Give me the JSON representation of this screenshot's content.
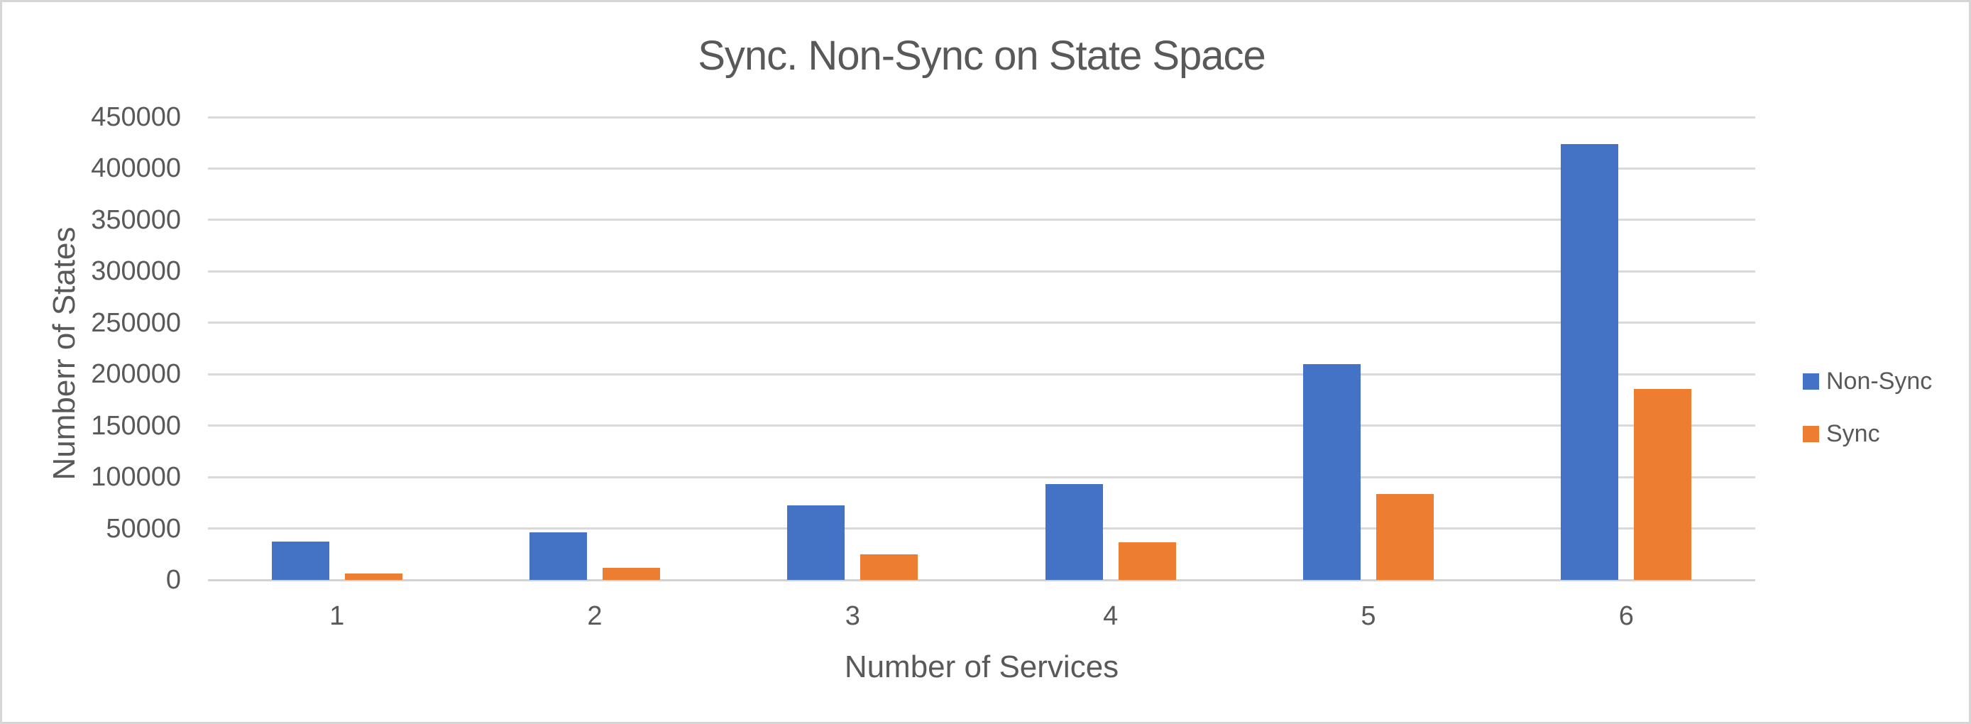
{
  "chart_data": {
    "type": "bar",
    "title": "Sync. Non-Sync on State Space",
    "xlabel": "Number of Services",
    "ylabel": "Numberr of States",
    "categories": [
      "1",
      "2",
      "3",
      "4",
      "5",
      "6"
    ],
    "series": [
      {
        "name": "Non-Sync",
        "color": "#4472C4",
        "values": [
          37000,
          46000,
          72500,
          93000,
          210000,
          424000
        ]
      },
      {
        "name": "Sync",
        "color": "#ED7D31",
        "values": [
          6000,
          11500,
          25000,
          36500,
          83500,
          186000
        ]
      }
    ],
    "ylim": [
      0,
      450000
    ],
    "ytick_step": 50000,
    "ytick_labels": [
      "0",
      "50000",
      "100000",
      "150000",
      "200000",
      "250000",
      "300000",
      "350000",
      "400000",
      "450000"
    ],
    "grid": true,
    "legend_position": "right",
    "colors": {
      "non_sync": "#4472C4",
      "sync": "#ED7D31",
      "text": "#595959",
      "gridline": "#D9D9D9",
      "frame_border": "#D6D6D6"
    }
  }
}
